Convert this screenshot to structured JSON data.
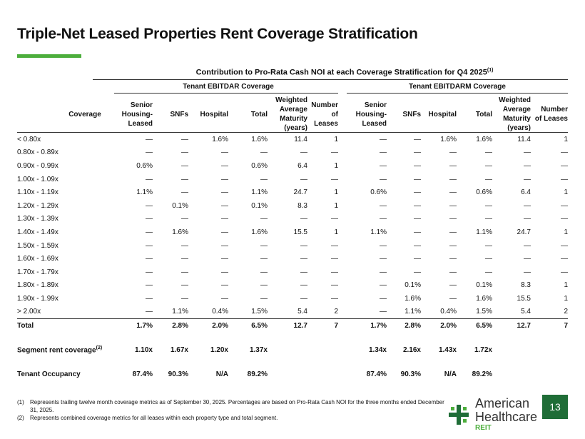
{
  "title": "Triple-Net Leased Properties Rent Coverage Stratification",
  "super_header": "Contribution to Pro-Rata Cash NOI at each Coverage Stratification for Q4 2025",
  "super_header_sup": "(1)",
  "groups": {
    "ebitdar": "Tenant EBITDAR Coverage",
    "ebitdarm": "Tenant EBITDARM Coverage"
  },
  "columns": {
    "coverage": "Coverage",
    "senior": "Senior Housing-Leased",
    "snfs": "SNFs",
    "hospital": "Hospital",
    "total": "Total",
    "wam": "Weighted Average Maturity (years)",
    "leases": "Number of Leases"
  },
  "rows": [
    {
      "label": "< 0.80x",
      "c": [
        "—",
        "—",
        "1.6%",
        "1.6%",
        "11.4",
        "1",
        "—",
        "—",
        "1.6%",
        "1.6%",
        "11.4",
        "1"
      ]
    },
    {
      "label": "0.80x - 0.89x",
      "c": [
        "—",
        "—",
        "—",
        "—",
        "—",
        "—",
        "—",
        "—",
        "—",
        "—",
        "—",
        "—"
      ]
    },
    {
      "label": "0.90x - 0.99x",
      "c": [
        "0.6%",
        "—",
        "—",
        "0.6%",
        "6.4",
        "1",
        "—",
        "—",
        "—",
        "—",
        "—",
        "—"
      ]
    },
    {
      "label": "1.00x - 1.09x",
      "c": [
        "—",
        "—",
        "—",
        "—",
        "—",
        "—",
        "—",
        "—",
        "—",
        "—",
        "—",
        "—"
      ]
    },
    {
      "label": "1.10x - 1.19x",
      "c": [
        "1.1%",
        "—",
        "—",
        "1.1%",
        "24.7",
        "1",
        "0.6%",
        "—",
        "—",
        "0.6%",
        "6.4",
        "1"
      ]
    },
    {
      "label": "1.20x - 1.29x",
      "c": [
        "—",
        "0.1%",
        "—",
        "0.1%",
        "8.3",
        "1",
        "—",
        "—",
        "—",
        "—",
        "—",
        "—"
      ]
    },
    {
      "label": "1.30x - 1.39x",
      "c": [
        "—",
        "—",
        "—",
        "—",
        "—",
        "—",
        "—",
        "—",
        "—",
        "—",
        "—",
        "—"
      ]
    },
    {
      "label": "1.40x - 1.49x",
      "c": [
        "—",
        "1.6%",
        "—",
        "1.6%",
        "15.5",
        "1",
        "1.1%",
        "—",
        "—",
        "1.1%",
        "24.7",
        "1"
      ]
    },
    {
      "label": "1.50x - 1.59x",
      "c": [
        "—",
        "—",
        "—",
        "—",
        "—",
        "—",
        "—",
        "—",
        "—",
        "—",
        "—",
        "—"
      ]
    },
    {
      "label": "1.60x - 1.69x",
      "c": [
        "—",
        "—",
        "—",
        "—",
        "—",
        "—",
        "—",
        "—",
        "—",
        "—",
        "—",
        "—"
      ]
    },
    {
      "label": "1.70x - 1.79x",
      "c": [
        "—",
        "—",
        "—",
        "—",
        "—",
        "—",
        "—",
        "—",
        "—",
        "—",
        "—",
        "—"
      ]
    },
    {
      "label": "1.80x - 1.89x",
      "c": [
        "—",
        "—",
        "—",
        "—",
        "—",
        "—",
        "—",
        "0.1%",
        "—",
        "0.1%",
        "8.3",
        "1"
      ]
    },
    {
      "label": "1.90x - 1.99x",
      "c": [
        "—",
        "—",
        "—",
        "—",
        "—",
        "—",
        "—",
        "1.6%",
        "—",
        "1.6%",
        "15.5",
        "1"
      ]
    },
    {
      "label": "> 2.00x",
      "c": [
        "—",
        "1.1%",
        "0.4%",
        "1.5%",
        "5.4",
        "2",
        "—",
        "1.1%",
        "0.4%",
        "1.5%",
        "5.4",
        "2"
      ]
    }
  ],
  "total_row": {
    "label": "Total",
    "c": [
      "1.7%",
      "2.8%",
      "2.0%",
      "6.5%",
      "12.7",
      "7",
      "1.7%",
      "2.8%",
      "2.0%",
      "6.5%",
      "12.7",
      "7"
    ]
  },
  "segment_row": {
    "label": "Segment rent coverage",
    "sup": "(2)",
    "c": [
      "1.10x",
      "1.67x",
      "1.20x",
      "1.37x",
      "",
      "",
      "1.34x",
      "2.16x",
      "1.43x",
      "1.72x",
      "",
      ""
    ]
  },
  "occupancy_row": {
    "label": "Tenant Occupancy",
    "c": [
      "87.4%",
      "90.3%",
      "N/A",
      "89.2%",
      "",
      "",
      "87.4%",
      "90.3%",
      "N/A",
      "89.2%",
      "",
      ""
    ]
  },
  "footnotes": [
    {
      "num": "(1)",
      "text": "Represents trailing twelve month coverage metrics as of September 30, 2025. Percentages are based on Pro-Rata Cash NOI for the three months ended December 31, 2025."
    },
    {
      "num": "(2)",
      "text": "Represents combined coverage metrics for all leases within each property type and total segment."
    }
  ],
  "logo": {
    "line1": "American",
    "line2": "Healthcare",
    "line3": "REIT"
  },
  "page_number": "13",
  "colors": {
    "accent_green": "#4cae3c",
    "dark_green": "#1f6d37"
  }
}
